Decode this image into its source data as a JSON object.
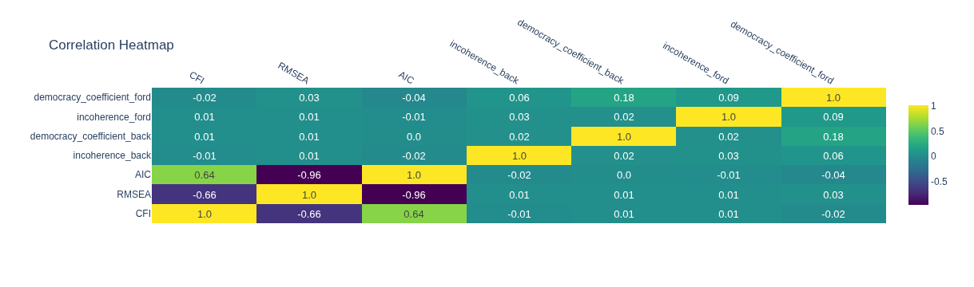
{
  "chart_data": {
    "type": "heatmap",
    "title": "Correlation Heatmap",
    "categories": [
      "CFI",
      "RMSEA",
      "AIC",
      "incoherence_back",
      "democracy_coefficient_back",
      "incoherence_ford",
      "democracy_coefficient_ford"
    ],
    "y_categories": [
      "democracy_coefficient_ford",
      "incoherence_ford",
      "democracy_coefficient_back",
      "incoherence_back",
      "AIC",
      "RMSEA",
      "CFI"
    ],
    "cells": [
      [
        -0.02,
        0.03,
        -0.04,
        0.06,
        0.18,
        0.09,
        1.0
      ],
      [
        0.01,
        0.01,
        -0.01,
        0.03,
        0.02,
        1.0,
        0.09
      ],
      [
        0.01,
        0.01,
        0.0,
        0.02,
        1.0,
        0.02,
        0.18
      ],
      [
        -0.01,
        0.01,
        -0.02,
        1.0,
        0.02,
        0.03,
        0.06
      ],
      [
        0.64,
        -0.96,
        1.0,
        -0.02,
        0.0,
        -0.01,
        -0.04
      ],
      [
        -0.66,
        1.0,
        -0.96,
        0.01,
        0.01,
        0.01,
        0.03
      ],
      [
        1.0,
        -0.66,
        0.64,
        -0.01,
        0.01,
        0.01,
        -0.02
      ]
    ],
    "cell_labels": [
      [
        "-0.02",
        "0.03",
        "-0.04",
        "0.06",
        "0.18",
        "0.09",
        "1.0"
      ],
      [
        "0.01",
        "0.01",
        "-0.01",
        "0.03",
        "0.02",
        "1.0",
        "0.09"
      ],
      [
        "0.01",
        "0.01",
        "0.0",
        "0.02",
        "1.0",
        "0.02",
        "0.18"
      ],
      [
        "-0.01",
        "0.01",
        "-0.02",
        "1.0",
        "0.02",
        "0.03",
        "0.06"
      ],
      [
        "0.64",
        "-0.96",
        "1.0",
        "-0.02",
        "0.0",
        "-0.01",
        "-0.04"
      ],
      [
        "-0.66",
        "1.0",
        "-0.96",
        "0.01",
        "0.01",
        "0.01",
        "0.03"
      ],
      [
        "1.0",
        "-0.66",
        "0.64",
        "-0.01",
        "0.01",
        "0.01",
        "-0.02"
      ]
    ],
    "clim": [
      -0.96,
      1.0
    ],
    "cticks": [
      -0.5,
      0,
      0.5,
      1
    ]
  }
}
